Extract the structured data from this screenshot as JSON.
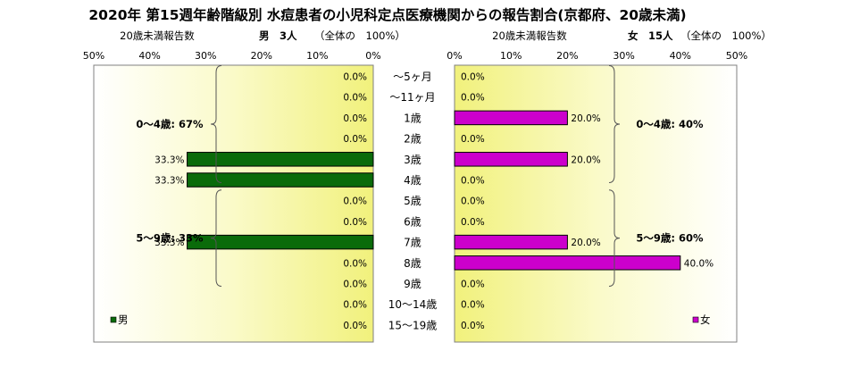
{
  "title": "2020年 第15週年齢階級別 水痘患者の小児科定点医療機関からの報告割合(京都府、20歳未満)",
  "chart_data": [
    {
      "type": "bar",
      "orientation": "horizontal",
      "direction": "right-to-left",
      "axis_label": "20歳未満報告数",
      "header": "男　3人",
      "header_note": "（全体の　100%）",
      "legend": "男",
      "legend_position": "bottom-left",
      "color": "#0a6b0a",
      "plot_bg": "yellow-gradient",
      "xlim": [
        0,
        50
      ],
      "ticks": [
        "50%",
        "40%",
        "30%",
        "20%",
        "10%",
        "0%"
      ],
      "values": [
        0,
        0,
        0,
        0,
        33.3,
        33.3,
        0,
        0,
        33.3,
        0,
        0,
        0,
        0
      ],
      "data_labels": [
        "0.0%",
        "0.0%",
        "0.0%",
        "0.0%",
        "33.3%",
        "33.3%",
        "0.0%",
        "0.0%",
        "33.3%",
        "0.0%",
        "0.0%",
        "0.0%",
        "0.0%"
      ],
      "groups": [
        {
          "label": "0～4歳: 67%",
          "from": 0,
          "to": 5
        },
        {
          "label": "5～9歳: 33%",
          "from": 6,
          "to": 10
        }
      ]
    },
    {
      "type": "bar",
      "orientation": "horizontal",
      "direction": "left-to-right",
      "axis_label": "20歳未満報告数",
      "header": "女　15人",
      "header_note": "（全体の　100%）",
      "legend": "女",
      "legend_position": "bottom-right",
      "color": "#cc00cc",
      "plot_bg": "yellow-gradient",
      "xlim": [
        0,
        50
      ],
      "ticks": [
        "0%",
        "10%",
        "20%",
        "30%",
        "40%",
        "50%"
      ],
      "values": [
        0,
        0,
        20,
        0,
        20,
        0,
        0,
        0,
        20,
        40,
        0,
        0,
        0
      ],
      "data_labels": [
        "0.0%",
        "0.0%",
        "20.0%",
        "0.0%",
        "20.0%",
        "0.0%",
        "0.0%",
        "0.0%",
        "20.0%",
        "40.0%",
        "0.0%",
        "0.0%",
        "0.0%"
      ],
      "groups": [
        {
          "label": "0～4歳: 40%",
          "from": 0,
          "to": 5
        },
        {
          "label": "5～9歳: 60%",
          "from": 6,
          "to": 10
        }
      ]
    }
  ],
  "categories": [
    "～5ヶ月",
    "～11ヶ月",
    "1歳",
    "2歳",
    "3歳",
    "4歳",
    "5歳",
    "6歳",
    "7歳",
    "8歳",
    "9歳",
    "10～14歳",
    "15～19歳"
  ]
}
